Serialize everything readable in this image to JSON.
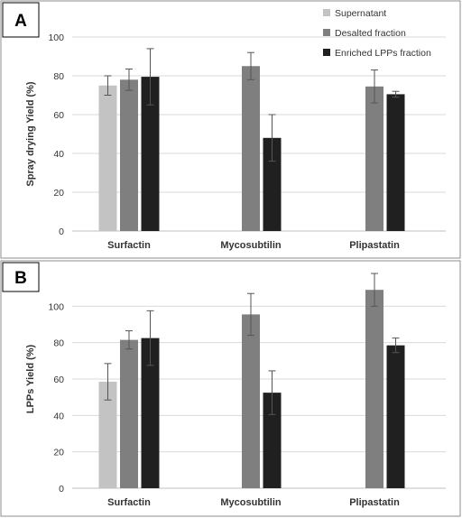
{
  "colors": {
    "supernatant": "#c3c3c3",
    "desalted": "#7f7f7f",
    "enriched": "#202020",
    "grid": "#d9d9d9",
    "frame": "#8c8c8c",
    "errorbar": "#555555"
  },
  "legend": [
    "Supernatant",
    "Desalted fraction",
    "Enriched LPPs fraction"
  ],
  "chart_data": [
    {
      "type": "bar",
      "panel_label": "A",
      "ylabel": "Spray drying Yield (%)",
      "ylim": [
        0,
        100
      ],
      "yticks": [
        0,
        20,
        40,
        60,
        80,
        100
      ],
      "categories": [
        "Surfactin",
        "Mycosubtilin",
        "Plipastatin"
      ],
      "grid": true,
      "legend_position": "top-right",
      "series": [
        {
          "name": "Supernatant",
          "values": [
            75,
            null,
            null
          ],
          "errors": [
            5,
            null,
            null
          ]
        },
        {
          "name": "Desalted fraction",
          "values": [
            78,
            85,
            74.5
          ],
          "errors": [
            5.5,
            7,
            8.5
          ]
        },
        {
          "name": "Enriched LPPs fraction",
          "values": [
            79.5,
            48,
            70.5
          ],
          "errors": [
            14.5,
            12,
            1.5
          ]
        }
      ]
    },
    {
      "type": "bar",
      "panel_label": "B",
      "ylabel": "LPPs Yield (%)",
      "ylim": [
        0,
        120
      ],
      "yticks": [
        0,
        20,
        40,
        60,
        80,
        100
      ],
      "categories": [
        "Surfactin",
        "Mycosubtilin",
        "Plipastatin"
      ],
      "grid": true,
      "series": [
        {
          "name": "Supernatant",
          "values": [
            58.5,
            null,
            null
          ],
          "errors": [
            10,
            null,
            null
          ]
        },
        {
          "name": "Desalted fraction",
          "values": [
            81.5,
            95.5,
            109
          ],
          "errors": [
            5,
            11.5,
            9
          ]
        },
        {
          "name": "Enriched LPPs fraction",
          "values": [
            82.5,
            52.5,
            78.5
          ],
          "errors": [
            15,
            12,
            4
          ]
        }
      ]
    }
  ]
}
